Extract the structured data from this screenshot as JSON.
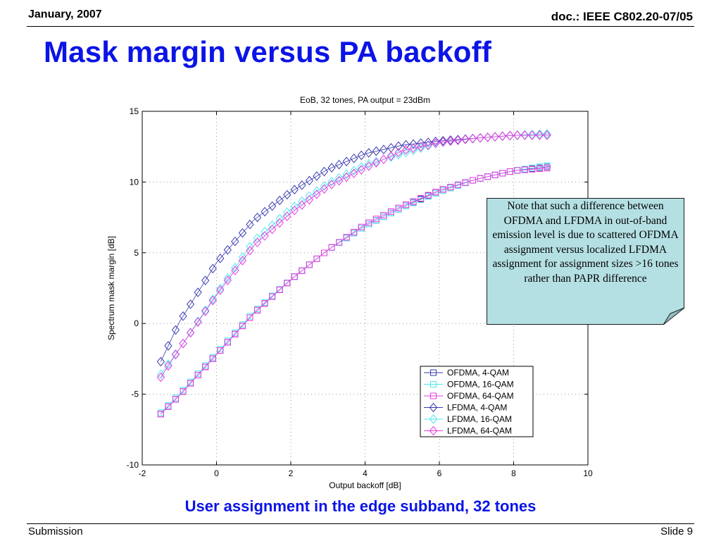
{
  "header": {
    "date": "January, 2007",
    "doc": "doc.: IEEE C802.20-07/05"
  },
  "title": "Mask margin versus PA backoff",
  "note": "Note that such a difference between OFDMA and LFDMA in out-of-band emission level is due to scattered OFDMA assignment versus localized LFDMA assignment for assignment sizes >16 tones rather than PAPR difference",
  "caption": "User assignment in the edge subband, 32 tones",
  "footer": {
    "left": "Submission",
    "right": "Slide 9"
  },
  "chart_data": {
    "type": "line",
    "title": "EoB, 32 tones, PA output = 23dBm",
    "xlabel": "Output backoff [dB]",
    "ylabel": "Spectrum mask margin [dB]",
    "xlim": [
      -2,
      10
    ],
    "ylim": [
      -10,
      15
    ],
    "xticks": [
      -2,
      0,
      2,
      4,
      6,
      8,
      10
    ],
    "yticks": [
      -10,
      -5,
      0,
      5,
      10,
      15
    ],
    "grid": true,
    "legend_position": "lower-right",
    "x": [
      -1.5,
      -1,
      0,
      1,
      2,
      3,
      4,
      5,
      6,
      7,
      8,
      9
    ],
    "series": [
      {
        "name": "OFDMA,  4-QAM",
        "marker": "square",
        "color": "#3a3ab0",
        "values": [
          -6.4,
          -5.1,
          -2.2,
          0.7,
          3.1,
          5.2,
          6.9,
          8.2,
          9.4,
          10.2,
          10.8,
          11.1
        ]
      },
      {
        "name": "OFDMA, 16-QAM",
        "marker": "square",
        "color": "#4fe9ee",
        "values": [
          -6.3,
          -5.0,
          -2.1,
          0.8,
          3.1,
          5.2,
          6.9,
          8.2,
          9.3,
          10.2,
          10.8,
          11.2
        ]
      },
      {
        "name": "OFDMA, 64-QAM",
        "marker": "square",
        "color": "#ea3ae0",
        "values": [
          -6.4,
          -5.1,
          -2.2,
          0.7,
          3.1,
          5.2,
          7.0,
          8.3,
          9.4,
          10.2,
          10.8,
          11.0
        ]
      },
      {
        "name": "LFDMA,  4-QAM",
        "marker": "diamond",
        "color": "#3a3ab0",
        "values": [
          -2.7,
          0.1,
          4.3,
          7.3,
          9.3,
          10.9,
          12.0,
          12.6,
          12.9,
          13.1,
          13.3,
          13.4
        ]
      },
      {
        "name": "LFDMA, 16-QAM",
        "marker": "diamond",
        "color": "#4fe9ee",
        "values": [
          -3.6,
          -1.8,
          2.1,
          5.8,
          8.1,
          9.9,
          11.2,
          12.0,
          12.8,
          13.1,
          13.3,
          13.4
        ]
      },
      {
        "name": "LFDMA, 64-QAM",
        "marker": "diamond",
        "color": "#ea3ae0",
        "values": [
          -3.8,
          -1.8,
          2.0,
          5.5,
          7.8,
          9.7,
          11.0,
          12.2,
          12.8,
          13.1,
          13.3,
          13.3
        ]
      }
    ]
  }
}
